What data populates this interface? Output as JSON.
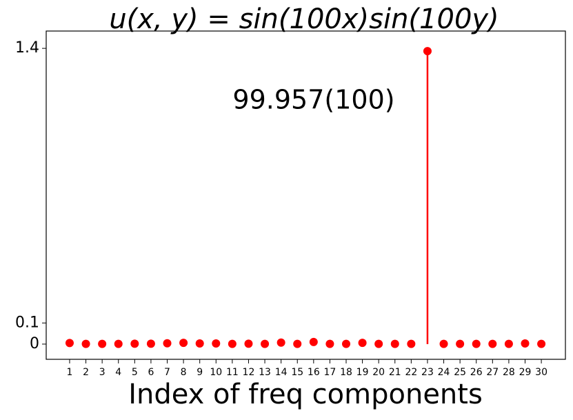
{
  "chart_data": {
    "type": "stem",
    "title": "u(x, y) = sin(100x)sin(100y)",
    "x_label": "Index of freq components",
    "annotation": "99.957(100)",
    "x": [
      1,
      2,
      3,
      4,
      5,
      6,
      7,
      8,
      9,
      10,
      11,
      12,
      13,
      14,
      15,
      16,
      17,
      18,
      19,
      20,
      21,
      22,
      23,
      24,
      25,
      26,
      27,
      28,
      29,
      30
    ],
    "values": [
      0.005,
      0.001,
      0.001,
      0.001,
      0.002,
      0.002,
      0.004,
      0.006,
      0.003,
      0.003,
      0.001,
      0.002,
      0.001,
      0.007,
      0.001,
      0.01,
      0.001,
      0.001,
      0.006,
      0.001,
      0.001,
      0.001,
      1.387,
      0.001,
      0.001,
      0.001,
      0.001,
      0.001,
      0.003,
      0.001
    ],
    "color": "#ff0000",
    "xlim": [
      -0.44,
      31.48
    ],
    "xticks": [
      1,
      2,
      3,
      4,
      5,
      6,
      7,
      8,
      9,
      10,
      11,
      12,
      13,
      14,
      15,
      16,
      17,
      18,
      19,
      20,
      21,
      22,
      23,
      24,
      25,
      26,
      27,
      28,
      29,
      30
    ],
    "ylim": [
      -0.072,
      1.482
    ],
    "yticks": [
      0,
      0.1,
      1.4
    ]
  }
}
